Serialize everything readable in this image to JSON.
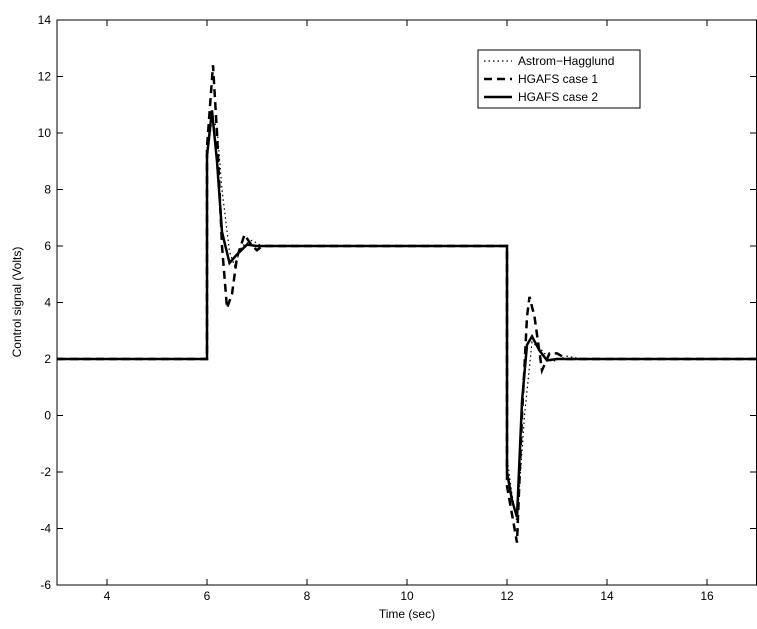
{
  "chart_data": {
    "type": "line",
    "xlabel": "Time (sec)",
    "ylabel": "Control signal (Volts)",
    "xlim": [
      3,
      17
    ],
    "xticks": [
      4,
      6,
      8,
      10,
      12,
      14,
      16
    ],
    "ylim": [
      -6,
      14
    ],
    "yticks": [
      -6,
      -4,
      -2,
      0,
      2,
      4,
      6,
      8,
      10,
      12,
      14
    ],
    "legend": "upper right",
    "series": [
      {
        "name": "Astrom−Hagglund",
        "color": "#000000",
        "style": "dotted",
        "x": [
          3,
          6,
          6,
          6.1,
          6.2,
          6.3,
          6.45,
          6.55,
          6.7,
          6.9,
          7.1,
          12,
          12,
          12.1,
          12.2,
          12.35,
          12.5,
          12.7,
          12.9,
          13.2,
          13.5,
          17
        ],
        "values": [
          2,
          2,
          9,
          10.5,
          10.2,
          8,
          5.8,
          5.3,
          6.0,
          6.2,
          6.0,
          6,
          -1.5,
          -2.8,
          -3.8,
          0,
          2.6,
          2.3,
          1.9,
          2.1,
          2.0,
          2
        ]
      },
      {
        "name": "HGAFS case 1",
        "color": "#000000",
        "style": "dashed",
        "x": [
          3,
          6,
          6,
          6.12,
          6.2,
          6.3,
          6.4,
          6.5,
          6.6,
          6.75,
          6.9,
          7.0,
          7.1,
          12,
          12,
          12.1,
          12.2,
          12.3,
          12.4,
          12.45,
          12.55,
          12.7,
          12.85,
          13.0,
          13.2,
          17
        ],
        "values": [
          2,
          2,
          9.5,
          12.4,
          10,
          6,
          3.8,
          4.3,
          5.6,
          6.4,
          6.0,
          5.85,
          6.0,
          6,
          -2.5,
          -3.5,
          -4.5,
          0,
          3.5,
          4.2,
          3.5,
          1.6,
          2.2,
          2.2,
          2.0,
          2
        ]
      },
      {
        "name": "HGAFS case 2",
        "color": "#000000",
        "style": "solid",
        "x": [
          3,
          6,
          6,
          6.1,
          6.2,
          6.3,
          6.45,
          6.6,
          6.8,
          7.0,
          12,
          12,
          12.1,
          12.2,
          12.3,
          12.4,
          12.5,
          12.65,
          12.8,
          13.0,
          17
        ],
        "values": [
          2,
          2,
          9.2,
          10.8,
          9.0,
          6.5,
          5.4,
          5.7,
          6.05,
          6.0,
          6,
          -2,
          -3.0,
          -3.6,
          0.5,
          2.5,
          2.8,
          2.3,
          1.95,
          2.0,
          2
        ]
      }
    ]
  }
}
